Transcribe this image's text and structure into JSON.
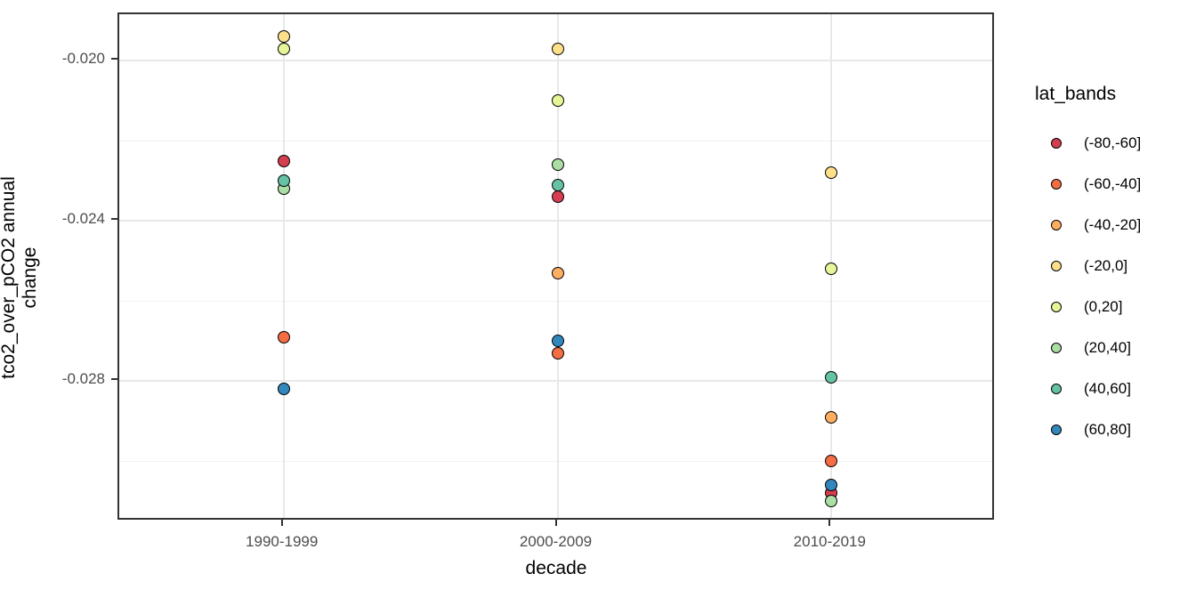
{
  "legend": {
    "title": "lat_bands"
  },
  "chart_data": {
    "type": "scatter",
    "title": "",
    "xlabel": "decade",
    "ylabel": "tco2_over_pCO2 annual change",
    "categories": [
      "1990-1999",
      "2000-2009",
      "2010-2019"
    ],
    "y_tick_labels": [
      "-0.020",
      "-0.024",
      "-0.028"
    ],
    "y_major_ticks": [
      -0.02,
      -0.024,
      -0.028
    ],
    "y_minor_gridlines": [
      -0.022,
      -0.026,
      -0.03
    ],
    "ylim": [
      -0.0315,
      -0.0188
    ],
    "grid": true,
    "legend_position": "right",
    "legend_title": "lat_bands",
    "point_outline": "#000000",
    "series": [
      {
        "name": "(-80,-60]",
        "color": "#d53e4f",
        "values": [
          -0.0225,
          -0.0234,
          -0.0308
        ]
      },
      {
        "name": "(-60,-40]",
        "color": "#f46d43",
        "values": [
          -0.0269,
          -0.0273,
          -0.03
        ]
      },
      {
        "name": "(-40,-20]",
        "color": "#fdae61",
        "values": [
          null,
          -0.0253,
          -0.0289
        ]
      },
      {
        "name": "(-20,0]",
        "color": "#fee08b",
        "values": [
          -0.0194,
          -0.0197,
          -0.0228
        ]
      },
      {
        "name": "(0,20]",
        "color": "#e6f598",
        "values": [
          -0.0197,
          -0.021,
          -0.0252
        ]
      },
      {
        "name": "(20,40]",
        "color": "#abdda4",
        "values": [
          -0.0232,
          -0.0226,
          -0.031
        ]
      },
      {
        "name": "(40,60]",
        "color": "#66c2a5",
        "values": [
          -0.023,
          -0.0231,
          -0.0279
        ]
      },
      {
        "name": "(60,80]",
        "color": "#3288bd",
        "values": [
          -0.0282,
          -0.027,
          -0.0306
        ]
      }
    ]
  }
}
